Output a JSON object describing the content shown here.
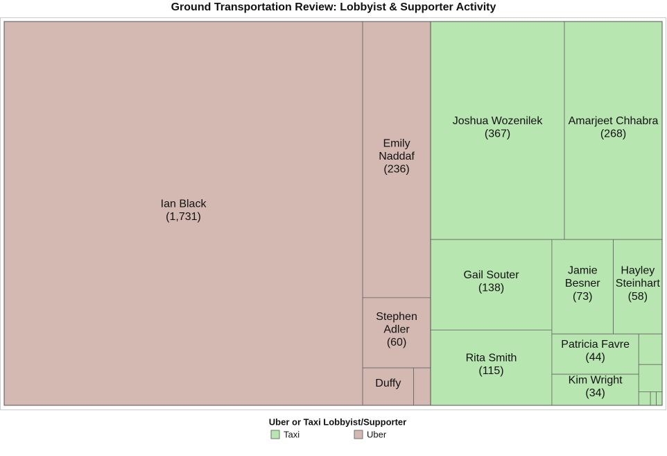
{
  "chart_data": {
    "type": "treemap",
    "title": "Ground Transportation Review: Lobbyist & Supporter Activity",
    "legend_title": "Uber or Taxi Lobbyist/Supporter",
    "series": [
      {
        "name": "Uber",
        "color": "#d4b9b3",
        "labels": [
          "Ian Black",
          "Emily Naddaf",
          "Stephen Adler",
          "Duffy",
          null
        ],
        "values": [
          1731,
          236,
          60,
          24,
          8
        ],
        "value_labels": [
          "(1,731)",
          "(236)",
          "(60)",
          null,
          null
        ]
      },
      {
        "name": "Taxi",
        "color": "#b8e6b0",
        "labels": [
          "Joshua Wozenilek",
          "Amarjeet Chhabra",
          "Gail Souter",
          "Rita Smith",
          "Jamie Besner",
          "Hayley Steinhart",
          "Patricia Favre",
          "Kim Wright",
          null,
          null,
          null,
          null,
          null
        ],
        "values": [
          367,
          268,
          138,
          115,
          73,
          58,
          44,
          34,
          9,
          8,
          2,
          1,
          1
        ],
        "value_labels": [
          "(367)",
          "(268)",
          "(138)",
          "(115)",
          "(73)",
          "(58)",
          "(44)",
          "(34)",
          null,
          null,
          null,
          null,
          null
        ]
      }
    ]
  }
}
